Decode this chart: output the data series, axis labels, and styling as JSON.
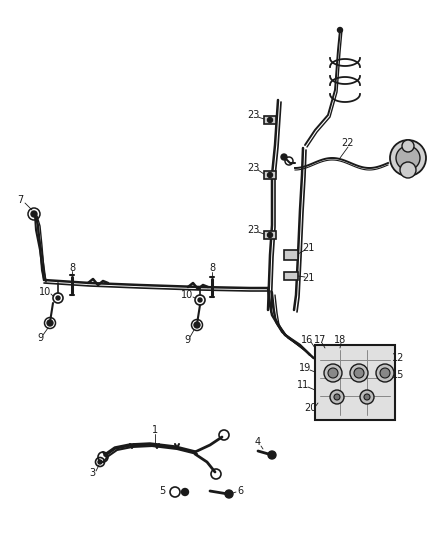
{
  "bg_color": "#ffffff",
  "line_color": "#1a1a1a",
  "label_color": "#1a1a1a",
  "figsize": [
    4.38,
    5.33
  ],
  "dpi": 100
}
